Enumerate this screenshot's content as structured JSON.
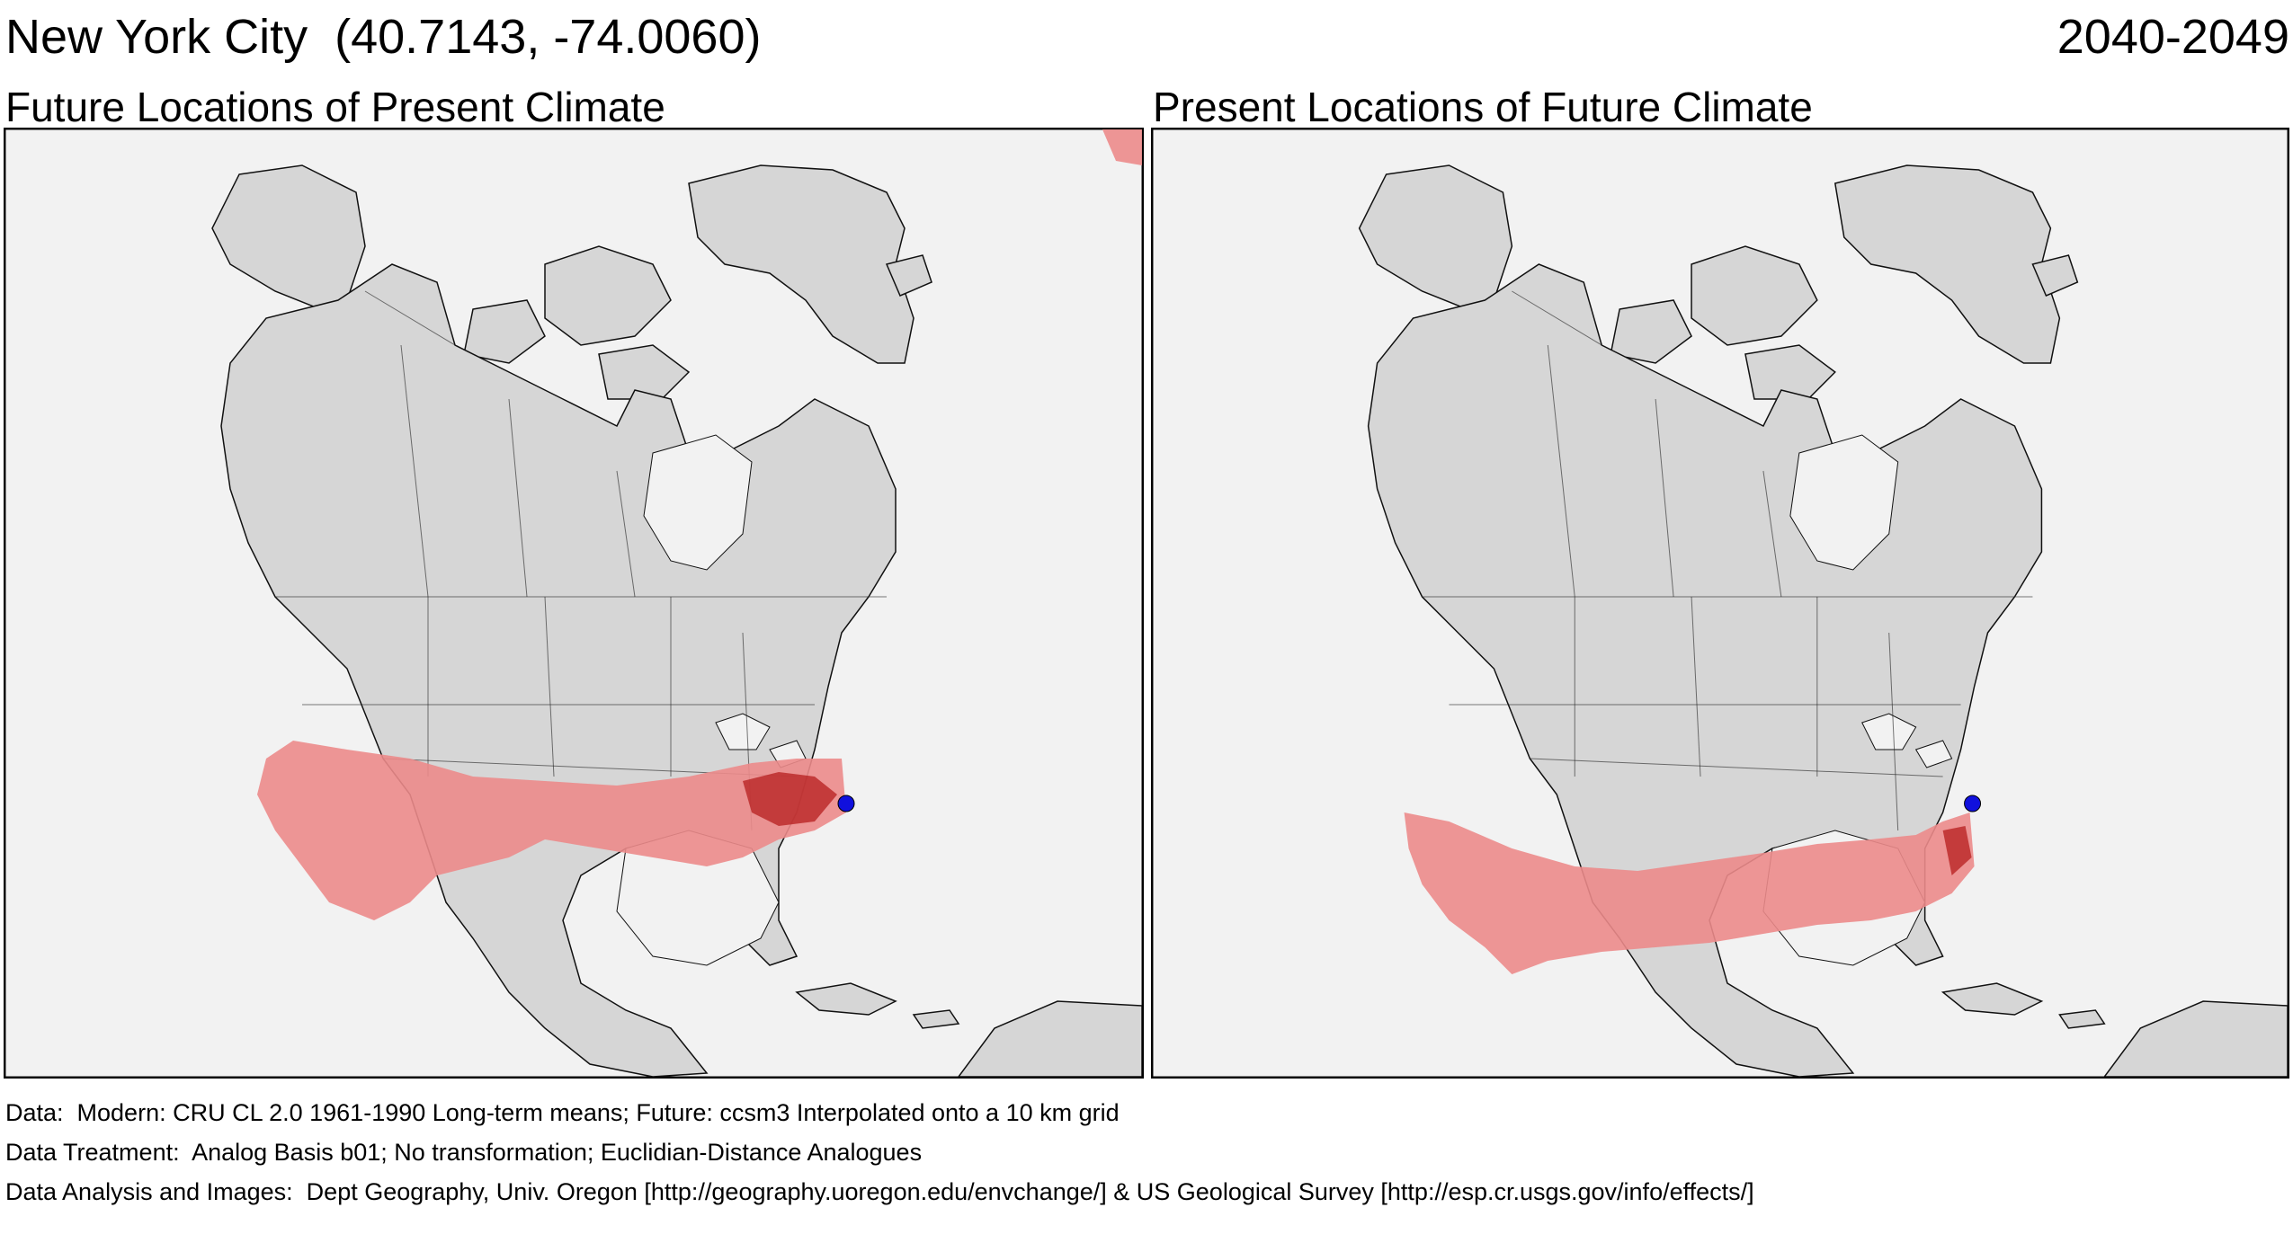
{
  "header": {
    "location": "New York City  (40.7143, -74.0060)",
    "period": "2040-2049"
  },
  "panels": [
    {
      "title": "Future Locations of Present Climate"
    },
    {
      "title": "Present Locations of Future Climate"
    }
  ],
  "point": {
    "name": "New York City",
    "lat": 40.7143,
    "lon": -74.006,
    "color": "#1010dd"
  },
  "colors": {
    "analog": "#ec8b8b",
    "analog_strong": "#b51e1e",
    "land": "#d6d6d6",
    "water": "#f2f2f2",
    "boundary": "#222222"
  },
  "footer": {
    "data": "Data:  Modern: CRU CL 2.0 1961-1990 Long-term means; Future: ccsm3 Interpolated onto a 10 km grid",
    "treatment": "Data Treatment:  Analog Basis b01; No transformation; Euclidian-Distance Analogues",
    "analysis": "Data Analysis and Images:  Dept Geography, Univ. Oregon [http://geography.uoregon.edu/envchange/] & US Geological Survey [http://esp.cr.usgs.gov/info/effects/]"
  }
}
